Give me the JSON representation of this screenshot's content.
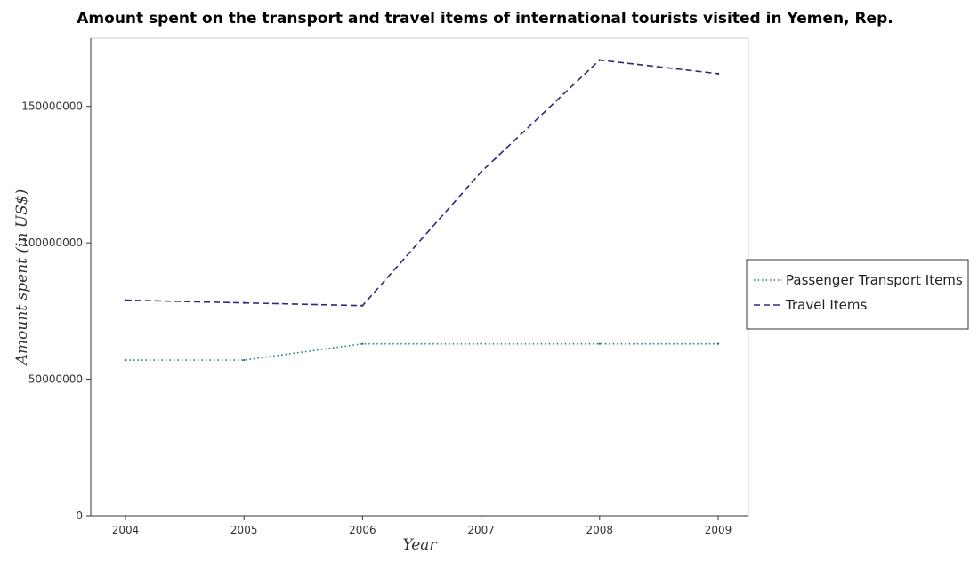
{
  "chart_data": {
    "type": "line",
    "title": "Amount spent on the transport and travel items of international tourists visited in Yemen, Rep.",
    "xlabel": "Year",
    "ylabel": "Amount spent (in US$)",
    "categories": [
      "2004",
      "2005",
      "2006",
      "2007",
      "2008",
      "2009"
    ],
    "ylim": [
      0,
      175000000
    ],
    "yticks": [
      0,
      50000000,
      100000000,
      150000000
    ],
    "ytick_labels": [
      "0",
      "50000000",
      "100000000",
      "150000000"
    ],
    "grid": false,
    "legend_position": "right",
    "series": [
      {
        "name": "Passenger Transport Items",
        "color": "#1b7f7f",
        "dash": "dotted",
        "values": [
          57000000,
          57000000,
          63000000,
          63000000,
          63000000,
          63000000
        ]
      },
      {
        "name": "Travel Items",
        "color": "#2e2a78",
        "dash": "dashed",
        "values": [
          79000000,
          78000000,
          77000000,
          126000000,
          167000000,
          162000000
        ]
      }
    ]
  }
}
